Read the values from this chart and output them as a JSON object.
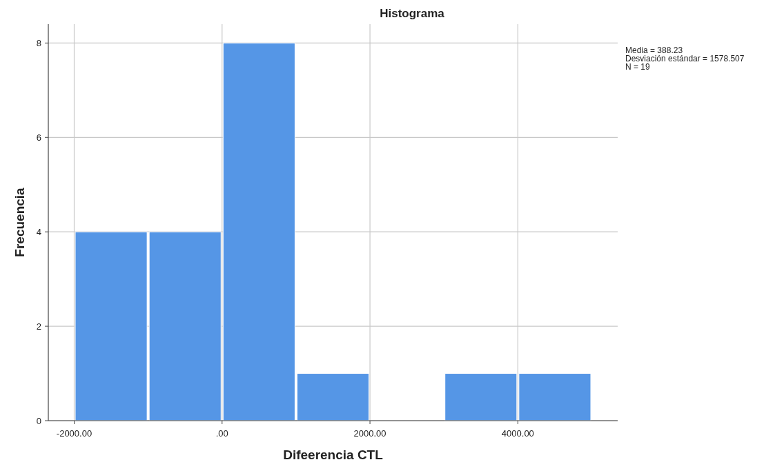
{
  "chart_data": {
    "type": "histogram",
    "title": "Histograma",
    "xlabel": "Difeerencia CTL",
    "ylabel": "Frecuencia",
    "bins": [
      -2000,
      -1000,
      0,
      1000,
      2000,
      3000,
      4000,
      5000
    ],
    "values": [
      4,
      4,
      8,
      1,
      0,
      1,
      1
    ],
    "color": "#5596e6",
    "xlim": [
      -2350,
      5350
    ],
    "xticks": [
      {
        "value": -2000,
        "label": "-2000.00"
      },
      {
        "value": 0,
        "label": ".00"
      },
      {
        "value": 2000,
        "label": "2000.00"
      },
      {
        "value": 4000,
        "label": "4000.00"
      }
    ],
    "ylim": [
      0,
      8.4
    ],
    "yticks": [
      0,
      2,
      4,
      6,
      8
    ],
    "grid": true,
    "annotations": [
      "Media = 388.23",
      "Desviación estándar = 1578.507",
      "N = 19"
    ]
  }
}
